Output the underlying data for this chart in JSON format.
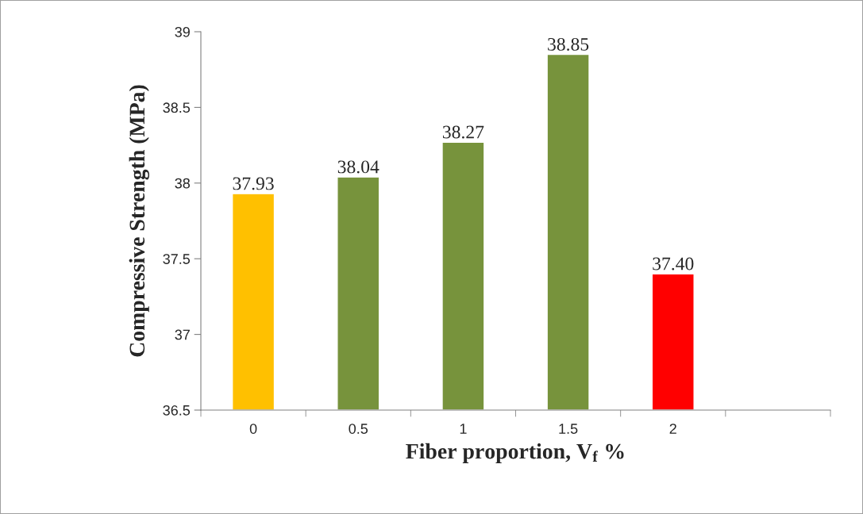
{
  "chart_data": {
    "type": "bar",
    "xlabel": "Fiber proportion, V$_{f}$ %",
    "ylabel": "Compressive Strength (MPa)",
    "categories": [
      "0",
      "0.5",
      "1",
      "1.5",
      "2",
      null
    ],
    "values": [
      37.93,
      38.04,
      38.27,
      38.85,
      37.4,
      null
    ],
    "colors": [
      "#ffc000",
      "#77933c",
      "#77933c",
      "#77933c",
      "#ff0000",
      null
    ],
    "value_labels": [
      "37.93",
      "38.04",
      "38.27",
      "38.85",
      "37.40",
      null
    ],
    "ylim": [
      36.5,
      39
    ],
    "yticks": [
      36.5,
      37,
      37.5,
      38,
      38.5,
      39
    ],
    "grid": false,
    "legend": false
  }
}
